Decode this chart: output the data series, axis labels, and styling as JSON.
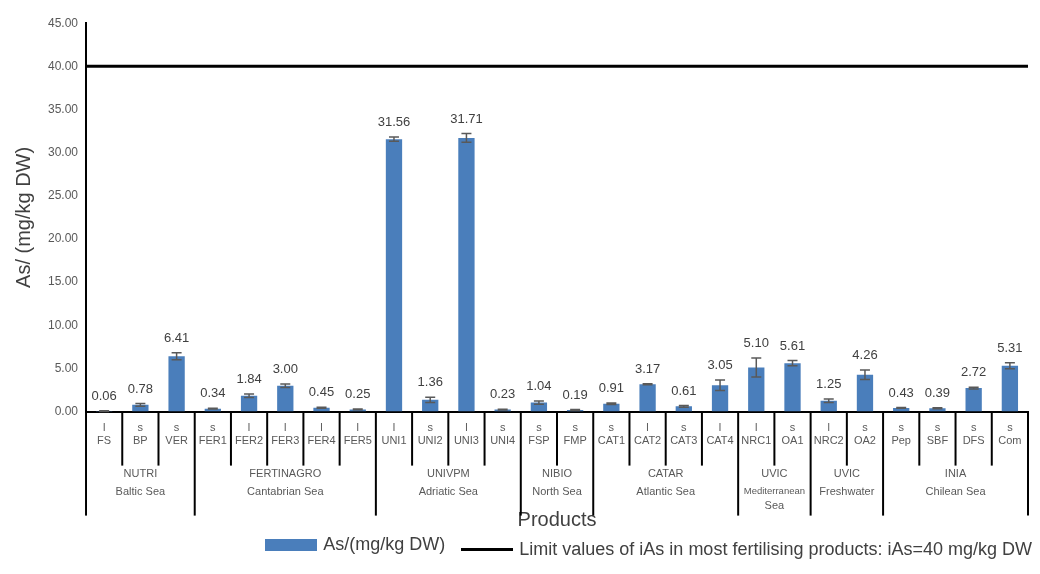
{
  "chart_data": {
    "type": "bar",
    "xlabel": "Products",
    "ylabel": "As/ (mg/kg DW)",
    "categories": [
      "l\nFS",
      "s\nBP",
      "s\nVER",
      "s\nFER1",
      "l\nFER2",
      "l\nFER3",
      "l\nFER4",
      "l\nFER5",
      "l\nUNI1",
      "s\nUNI2",
      "l\nUNI3",
      "s\nUNI4",
      "s\nFSP",
      "s\nFMP",
      "s\nCAT1",
      "l\nCAT2",
      "s\nCAT3",
      "l\nCAT4",
      "l\nNRC1",
      "s\nOA1",
      "l\nNRC2",
      "s\nOA2",
      "s\nPep",
      "s\nSBF",
      "s\nDFS",
      "s\nCom"
    ],
    "series": [
      {
        "name": "As/(mg/kg DW)",
        "color": "#4a7ebb",
        "values": [
          0.06,
          0.78,
          6.41,
          0.34,
          1.84,
          3.0,
          0.45,
          0.25,
          31.56,
          1.36,
          31.71,
          0.23,
          1.04,
          0.19,
          0.91,
          3.17,
          0.61,
          3.05,
          5.1,
          5.61,
          1.25,
          4.26,
          0.43,
          0.39,
          2.72,
          5.31
        ],
        "errors": [
          0.05,
          0.15,
          0.4,
          0.05,
          0.2,
          0.2,
          0.05,
          0.05,
          0.25,
          0.3,
          0.5,
          0.05,
          0.2,
          0.05,
          0.1,
          0.05,
          0.1,
          0.6,
          1.1,
          0.3,
          0.2,
          0.55,
          0.05,
          0.05,
          0.1,
          0.35
        ],
        "value_labels": [
          "0.06",
          "0.78",
          "6.41",
          "0.34",
          "1.84",
          "3.00",
          "0.45",
          "0.25",
          "31.56",
          "1.36",
          "31.71",
          "0.23",
          "1.04",
          "0.19",
          "0.91",
          "3.17",
          "0.61",
          "3.05",
          "5.10",
          "5.61",
          "1.25",
          "4.26",
          "0.43",
          "0.39",
          "2.72",
          "5.31"
        ]
      }
    ],
    "ylim": [
      0,
      45
    ],
    "yticks": [
      {
        "value": 0,
        "label": "0.00"
      },
      {
        "value": 5,
        "label": "5.00"
      },
      {
        "value": 10,
        "label": "10.00"
      },
      {
        "value": 15,
        "label": "15.00"
      },
      {
        "value": 20,
        "label": "20.00"
      },
      {
        "value": 25,
        "label": "25.00"
      },
      {
        "value": 30,
        "label": "30.00"
      },
      {
        "value": 35,
        "label": "35.00"
      },
      {
        "value": 40,
        "label": "40.00"
      },
      {
        "value": 45,
        "label": "45.00"
      }
    ],
    "ref_lines": [
      {
        "axis": "y",
        "value": 40,
        "label": "Limit values of iAs in most fertilising products: iAs=40 mg/kg DW",
        "color": "#000000"
      }
    ],
    "annotations": [
      "NUTRI\nBaltic Sea",
      "FERTINAGRO\nCantabrian Sea",
      "UNIVPM\nAdriatic Sea",
      "NIBIO\nNorth Sea",
      "CATAR\nAtlantic Sea",
      "UVIC\nMediterranean Sea",
      "UVIC\nFreshwater",
      "INIA\nChilean Sea"
    ],
    "grid": false,
    "legend": "bottom"
  }
}
